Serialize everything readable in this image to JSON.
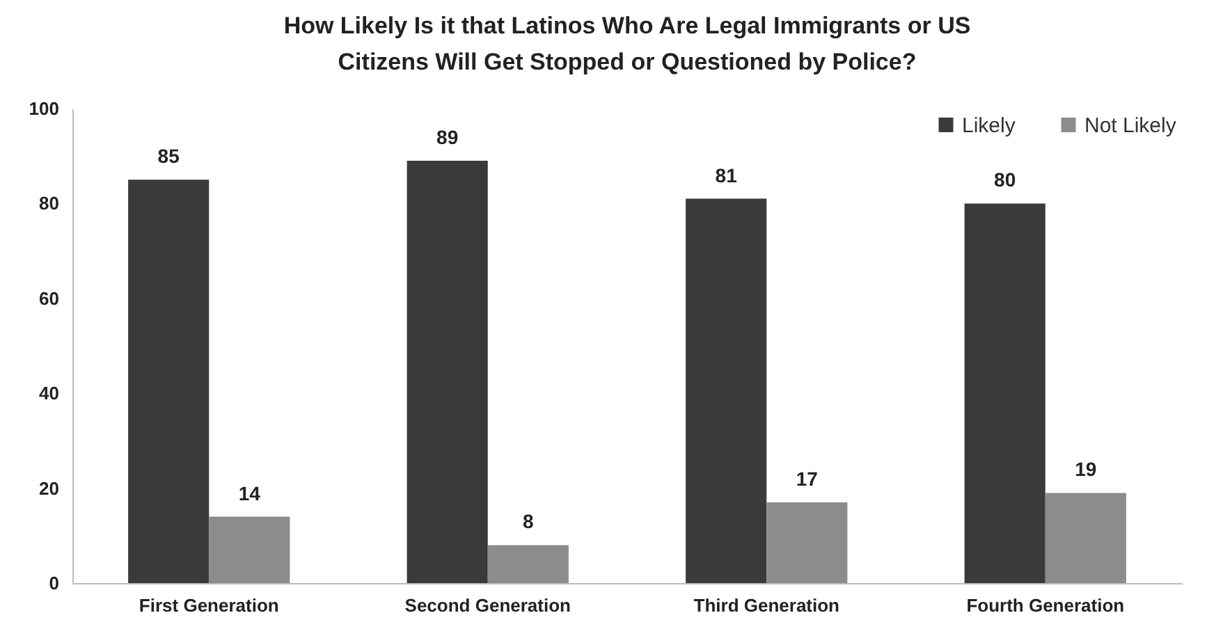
{
  "chart_data": {
    "type": "bar",
    "title": "How Likely Is it that Latinos Who Are Legal Immigrants or US Citizens Will Get Stopped or Questioned by Police?",
    "categories": [
      "First Generation",
      "Second Generation",
      "Third Generation",
      "Fourth Generation"
    ],
    "series": [
      {
        "name": "Likely",
        "color": "#3a3a3a",
        "values": [
          85,
          89,
          81,
          80
        ]
      },
      {
        "name": "Not Likely",
        "color": "#8c8c8c",
        "values": [
          14,
          8,
          17,
          19
        ]
      }
    ],
    "ylim": [
      0,
      100
    ],
    "yticks": [
      0,
      20,
      40,
      60,
      80,
      100
    ],
    "grid": false,
    "legend": "top right",
    "data_labels": true
  }
}
